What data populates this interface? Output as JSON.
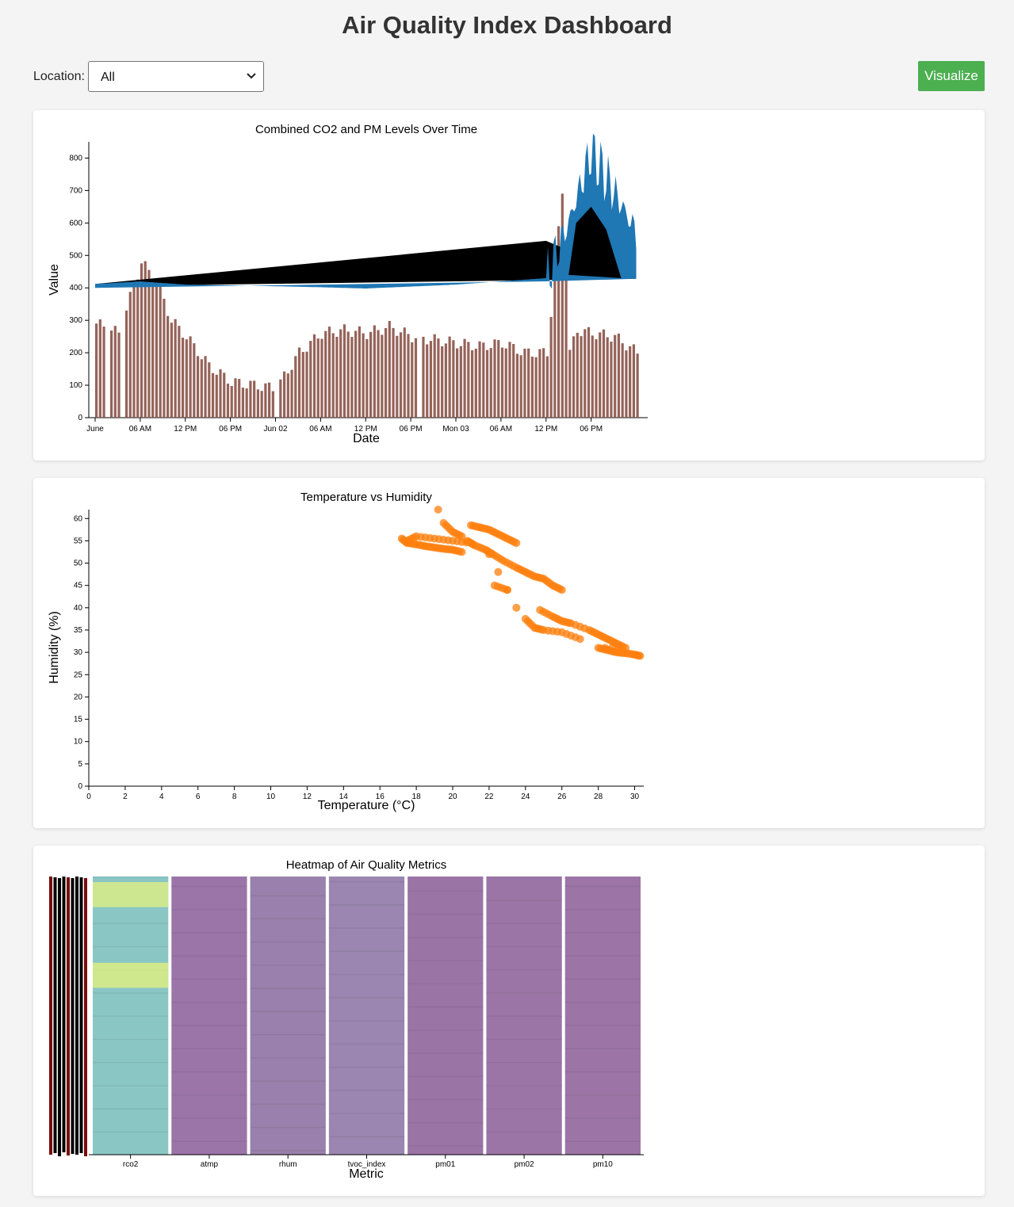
{
  "page": {
    "title": "Air Quality Index Dashboard"
  },
  "controls": {
    "location_label": "Location:",
    "location_selected": "All",
    "visualize_label": "Visualize",
    "accent": "#4caf50"
  },
  "charts": {
    "combined": {
      "title": "Combined CO2 and PM Levels Over Time",
      "xlabel": "Date",
      "ylabel": "Value",
      "x_ticks": [
        "June",
        "06 AM",
        "12 PM",
        "06 PM",
        "Jun 02",
        "06 AM",
        "12 PM",
        "06 PM",
        "Mon 03",
        "06 AM",
        "12 PM",
        "06 PM"
      ],
      "y_ticks": [
        "0",
        "100",
        "200",
        "300",
        "400",
        "500",
        "600",
        "700",
        "800"
      ]
    },
    "scatter": {
      "title": "Temperature vs Humidity",
      "xlabel": "Temperature (°C)",
      "ylabel": "Humidity (%)",
      "x_ticks": [
        "0",
        "2",
        "4",
        "6",
        "8",
        "10",
        "12",
        "14",
        "16",
        "18",
        "20",
        "22",
        "24",
        "26",
        "28",
        "30"
      ],
      "y_ticks": [
        "0",
        "5",
        "10",
        "15",
        "20",
        "25",
        "30",
        "35",
        "40",
        "45",
        "50",
        "55",
        "60"
      ]
    },
    "heatmap": {
      "title": "Heatmap of Air Quality Metrics",
      "xlabel": "Metric",
      "metrics": [
        "rco2",
        "atmp",
        "rhum",
        "tvoc_index",
        "pm01",
        "pm02",
        "pm10"
      ]
    }
  },
  "chart_data": [
    {
      "type": "area",
      "title": "Combined CO2 and PM Levels Over Time",
      "xlabel": "Date",
      "ylabel": "Value",
      "ylim": [
        0,
        850
      ],
      "x_range": [
        "2024-06-01 00:00",
        "2024-06-03 23:00"
      ],
      "series": [
        {
          "color": "#1f77b4",
          "x_hours": [
            0,
            6,
            12,
            18,
            24,
            30,
            36,
            42,
            48,
            54,
            60,
            63,
            66,
            69,
            72
          ],
          "values": [
            412,
            420,
            410,
            408,
            405,
            402,
            398,
            404,
            410,
            420,
            430,
            600,
            820,
            700,
            570
          ]
        },
        {
          "color": "#8c564b",
          "x_hours": [
            0,
            3,
            6,
            8,
            10,
            12,
            15,
            18,
            21,
            24,
            27,
            30,
            33,
            36,
            39,
            42,
            45,
            48,
            51,
            54,
            57,
            60,
            62,
            63,
            64,
            66,
            69,
            72
          ],
          "values": [
            290,
            260,
            480,
            420,
            300,
            250,
            160,
            110,
            100,
            90,
            200,
            260,
            270,
            260,
            280,
            250,
            240,
            230,
            220,
            230,
            200,
            200,
            700,
            200,
            270,
            260,
            250,
            200
          ]
        }
      ]
    },
    {
      "type": "scatter",
      "title": "Temperature vs Humidity",
      "xlabel": "Temperature (°C)",
      "ylabel": "Humidity (%)",
      "xlim": [
        0,
        30.5
      ],
      "ylim": [
        0,
        62
      ],
      "series": [
        {
          "color": "#ff7f0e",
          "points": [
            [
              17.2,
              55.5
            ],
            [
              17.5,
              54.5
            ],
            [
              18,
              54.2
            ],
            [
              18.5,
              53.8
            ],
            [
              19,
              53.5
            ],
            [
              19.5,
              53.2
            ],
            [
              20,
              53
            ],
            [
              20.5,
              52.5
            ],
            [
              19.2,
              62
            ],
            [
              19.5,
              59
            ],
            [
              20,
              57
            ],
            [
              20.5,
              56
            ],
            [
              21,
              58.5
            ],
            [
              21.5,
              58
            ],
            [
              22,
              57.5
            ],
            [
              22.5,
              56.5
            ],
            [
              23,
              55.5
            ],
            [
              23.5,
              54.5
            ],
            [
              20.8,
              55
            ],
            [
              21.2,
              54
            ],
            [
              21.8,
              53
            ],
            [
              22.2,
              52
            ],
            [
              22.8,
              50.5
            ],
            [
              23.5,
              49
            ],
            [
              24,
              48
            ],
            [
              24.5,
              47
            ],
            [
              25,
              46.5
            ],
            [
              25.5,
              45
            ],
            [
              26,
              44
            ],
            [
              22,
              52
            ],
            [
              22.5,
              48
            ],
            [
              23,
              44
            ],
            [
              23.5,
              40
            ],
            [
              24,
              37.5
            ],
            [
              24.5,
              35.5
            ],
            [
              25,
              35
            ],
            [
              26,
              34.5
            ],
            [
              27,
              33
            ],
            [
              22.3,
              45
            ],
            [
              23,
              44
            ],
            [
              24.8,
              39.5
            ],
            [
              25.5,
              38
            ],
            [
              26,
              37
            ],
            [
              26.5,
              36.5
            ],
            [
              27.5,
              35
            ],
            [
              28,
              34
            ],
            [
              28.5,
              33
            ],
            [
              29,
              32
            ],
            [
              29.5,
              31
            ],
            [
              28,
              31
            ],
            [
              28.5,
              30.5
            ],
            [
              29,
              30
            ],
            [
              29.5,
              29.8
            ],
            [
              30,
              29.5
            ],
            [
              30.3,
              29.2
            ],
            [
              17.5,
              55
            ],
            [
              18,
              56
            ],
            [
              19,
              55.5
            ],
            [
              20,
              55
            ],
            [
              21,
              54.5
            ]
          ]
        }
      ]
    },
    {
      "type": "heatmap",
      "title": "Heatmap of Air Quality Metrics",
      "xlabel": "Metric",
      "columns": [
        "rco2",
        "atmp",
        "rhum",
        "tvoc_index",
        "pm01",
        "pm02",
        "pm10"
      ],
      "column_colors": [
        "#8ac6c4",
        "#9b74a8",
        "#9a80ac",
        "#9a86b0",
        "#9b74a6",
        "#9b75a6",
        "#9c75a6"
      ],
      "highlight_rows": [
        {
          "column": "rco2",
          "color": "#d8ec88",
          "start_frac": 0.02,
          "end_frac": 0.11
        },
        {
          "column": "rco2",
          "color": "#dbec84",
          "start_frac": 0.31,
          "end_frac": 0.4
        }
      ]
    }
  ]
}
